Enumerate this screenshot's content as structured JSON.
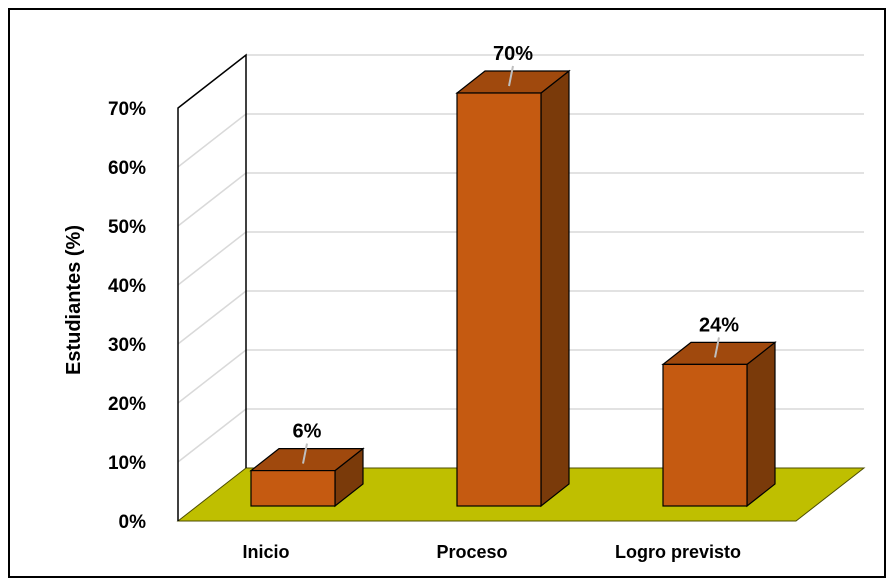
{
  "chart_data": {
    "type": "bar",
    "categories": [
      "Inicio",
      "Proceso",
      "Logro previsto"
    ],
    "values": [
      6,
      70,
      24
    ],
    "data_labels": [
      "6%",
      "70%",
      "24%"
    ],
    "ylabel": "Estudiantes (%)",
    "xlabel": "",
    "title": "",
    "ylim": [
      0,
      70
    ],
    "yticks": [
      0,
      10,
      20,
      30,
      40,
      50,
      60,
      70
    ],
    "ytick_labels": [
      "0%",
      "10%",
      "20%",
      "30%",
      "40%",
      "50%",
      "60%",
      "70%"
    ],
    "grid": true,
    "legend": "none",
    "style": "3d-column",
    "colors": {
      "bar_front": "#C55A11",
      "bar_top": "#A0490D",
      "bar_side": "#7A3A0A",
      "floor": "#BFBF00",
      "grid": "#D9D9D9",
      "axis": "#000000"
    }
  }
}
